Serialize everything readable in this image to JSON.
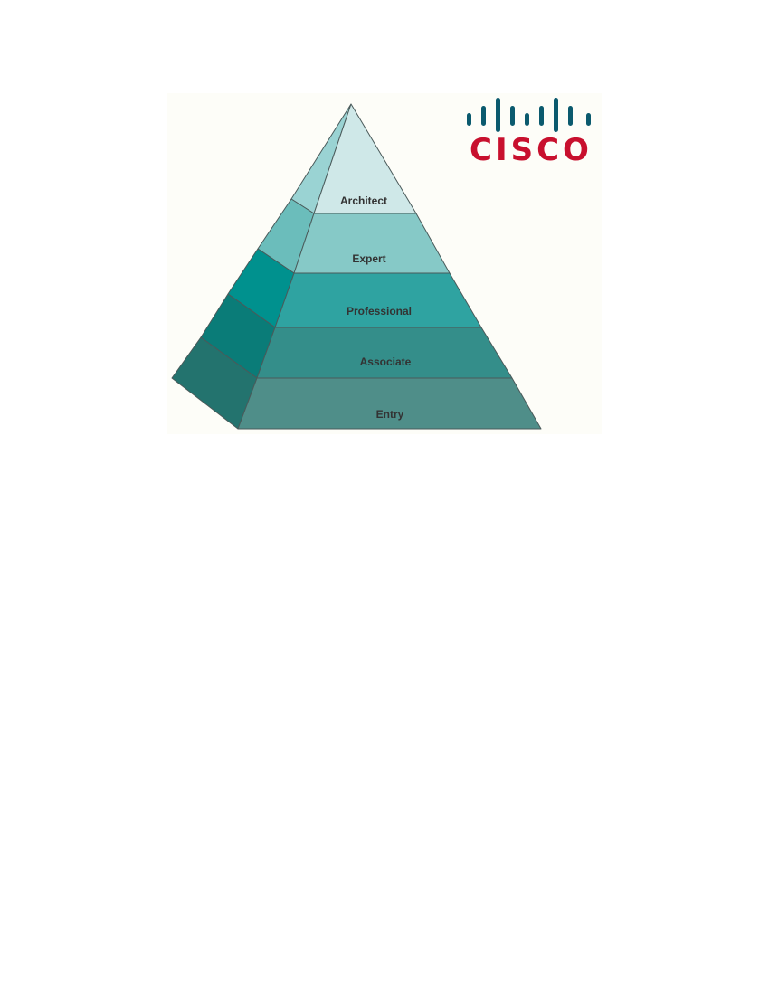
{
  "logo": {
    "wordmark": "CISCO",
    "bar_color": "#0b5a6e",
    "text_color": "#c8102e"
  },
  "pyramid": {
    "outline_color": "#4a5a5a",
    "tiers": [
      {
        "label": "Architect",
        "front_color": "#cfe8e8",
        "side_color": "#9ad3d3"
      },
      {
        "label": "Expert",
        "front_color": "#86c9c7",
        "side_color": "#6bbdbb"
      },
      {
        "label": "Professional",
        "front_color": "#2fa3a1",
        "side_color": "#00918e"
      },
      {
        "label": "Associate",
        "front_color": "#348e8a",
        "side_color": "#0a7c78"
      },
      {
        "label": "Entry",
        "front_color": "#4f8e89",
        "side_color": "#23736e"
      }
    ]
  }
}
